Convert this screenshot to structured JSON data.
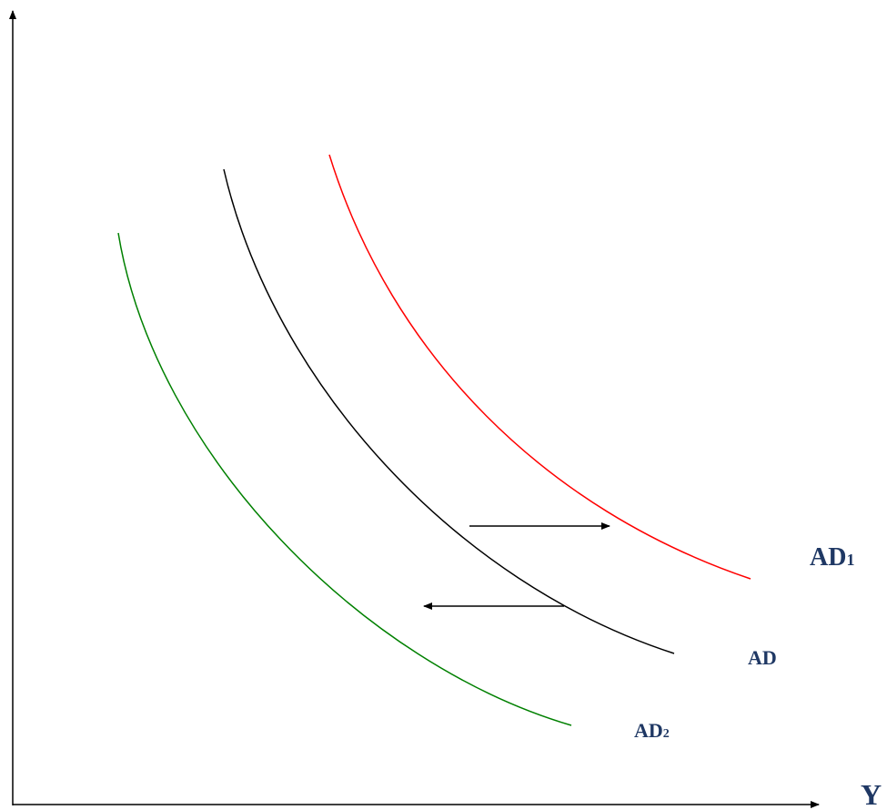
{
  "curves": [
    {
      "label": "AD",
      "subscript": "1"
    },
    {
      "label": "AD"
    },
    {
      "label": "AD",
      "subscript": "2"
    }
  ],
  "x_axis_label": "Y"
}
